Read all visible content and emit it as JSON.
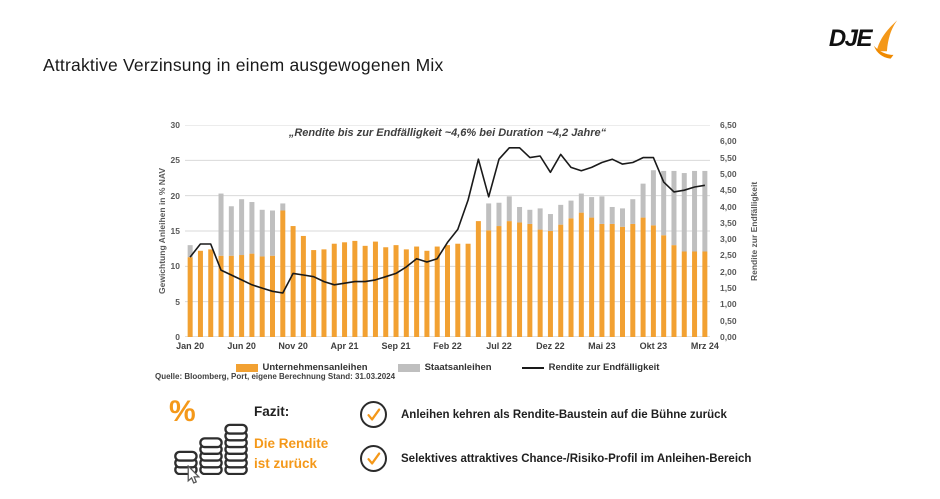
{
  "page": {
    "title": "Attraktive Verzinsung in einem ausgewogenen Mix"
  },
  "logo": {
    "text": "DJE"
  },
  "colors": {
    "accent_orange": "#F49819",
    "bar_orange": "#F2A132",
    "bar_gray": "#BFBFBF",
    "line_black": "#1A1A1A",
    "grid_gray": "#D9D9D9"
  },
  "chart_data": {
    "type": "bar",
    "stacked": true,
    "annotation": "„Rendite bis zur Endfälligkeit ~4,6% bei Duration ~4,2 Jahre“",
    "ylabel_left": "Gewichtung Anleihen in % NAV",
    "ylabel_right": "Rendite zur Endfälligkeit",
    "ylim_left": [
      0,
      30
    ],
    "ylim_right": [
      0,
      6.5
    ],
    "grid": true,
    "legend_position": "bottom",
    "x": [
      "Jan 20",
      "Feb 20",
      "Mrz 20",
      "Apr 20",
      "Mai 20",
      "Jun 20",
      "Jul 20",
      "Aug 20",
      "Sep 20",
      "Okt 20",
      "Nov 20",
      "Dez 20",
      "Jan 21",
      "Feb 21",
      "Mrz 21",
      "Apr 21",
      "Mai 21",
      "Jun 21",
      "Jul 21",
      "Aug 21",
      "Sep 21",
      "Okt 21",
      "Nov 21",
      "Dez 21",
      "Jan 22",
      "Feb 22",
      "Mrz 22",
      "Apr 22",
      "Mai 22",
      "Jun 22",
      "Jul 22",
      "Aug 22",
      "Sep 22",
      "Okt 22",
      "Nov 22",
      "Dez 22",
      "Jan 23",
      "Feb 23",
      "Mrz 23",
      "Apr 23",
      "Mai 23",
      "Jun 23",
      "Jul 23",
      "Aug 23",
      "Sep 23",
      "Okt 23",
      "Nov 23",
      "Dez 23",
      "Jan 24",
      "Feb 24",
      "Mrz 24"
    ],
    "x_tick_indices": [
      0,
      5,
      10,
      15,
      20,
      25,
      30,
      35,
      40,
      45,
      50
    ],
    "left_ticks": [
      "0",
      "5",
      "10",
      "15",
      "20",
      "25",
      "30"
    ],
    "right_ticks": [
      "0,00",
      "0,50",
      "1,00",
      "1,50",
      "2,00",
      "2,50",
      "3,00",
      "3,50",
      "4,00",
      "4,50",
      "5,00",
      "5,50",
      "6,00",
      "6,50"
    ],
    "series": [
      {
        "name": "Unternehmensanleihen",
        "type": "bar",
        "axis": "left",
        "color": "#F2A132",
        "values": [
          11.3,
          12.2,
          12.4,
          11.5,
          11.5,
          11.6,
          11.8,
          11.4,
          11.5,
          17.9,
          15.7,
          14.3,
          12.3,
          12.4,
          13.2,
          13.4,
          13.6,
          12.9,
          13.5,
          12.7,
          13.0,
          12.4,
          12.8,
          12.2,
          12.8,
          13.0,
          13.2,
          13.2,
          16.4,
          15.1,
          15.7,
          16.4,
          16.2,
          16.0,
          15.2,
          15.0,
          15.9,
          16.8,
          17.6,
          16.9,
          16.0,
          16.0,
          15.6,
          16.0,
          16.9,
          15.8,
          14.4,
          13.0,
          12.1,
          12.1,
          12.1
        ]
      },
      {
        "name": "Staatsanleihen",
        "type": "bar",
        "axis": "left",
        "color": "#BFBFBF",
        "values": [
          1.7,
          0,
          0,
          8.8,
          7.0,
          7.9,
          7.3,
          6.6,
          6.4,
          1.0,
          0,
          0,
          0,
          0,
          0,
          0,
          0,
          0,
          0,
          0,
          0,
          0,
          0,
          0,
          0,
          0,
          0,
          0,
          0,
          3.8,
          3.3,
          3.5,
          2.2,
          2.0,
          3.0,
          2.4,
          2.8,
          2.5,
          2.7,
          2.9,
          3.9,
          2.4,
          2.6,
          3.5,
          4.8,
          7.8,
          9.1,
          10.5,
          11.1,
          11.4,
          11.4
        ]
      },
      {
        "name": "Rendite zur Endfälligkeit",
        "type": "line",
        "axis": "right",
        "color": "#1A1A1A",
        "values": [
          2.45,
          2.85,
          2.85,
          2.05,
          1.9,
          1.75,
          1.6,
          1.5,
          1.4,
          1.35,
          1.95,
          1.9,
          1.85,
          1.7,
          1.6,
          1.65,
          1.7,
          1.7,
          1.75,
          1.85,
          1.95,
          2.15,
          2.4,
          2.3,
          2.4,
          2.9,
          3.3,
          4.2,
          5.45,
          4.3,
          5.45,
          5.8,
          5.8,
          5.5,
          5.55,
          5.05,
          5.6,
          5.2,
          5.1,
          5.2,
          5.35,
          5.45,
          5.3,
          5.35,
          5.5,
          5.5,
          4.75,
          4.45,
          4.5,
          4.6,
          4.65
        ]
      }
    ]
  },
  "source": "Quelle: Bloomberg, Port, eigene Berechnung Stand: 31.03.2024",
  "footer": {
    "percent_symbol": "%",
    "fazit_label": "Fazit:",
    "fazit_line1": "Die Rendite",
    "fazit_line2": "ist zurück",
    "checks": [
      "Anleihen kehren als Rendite-Baustein auf die Bühne zurück",
      "Selektives attraktives Chance-/Risiko-Profil im Anleihen-Bereich"
    ]
  }
}
